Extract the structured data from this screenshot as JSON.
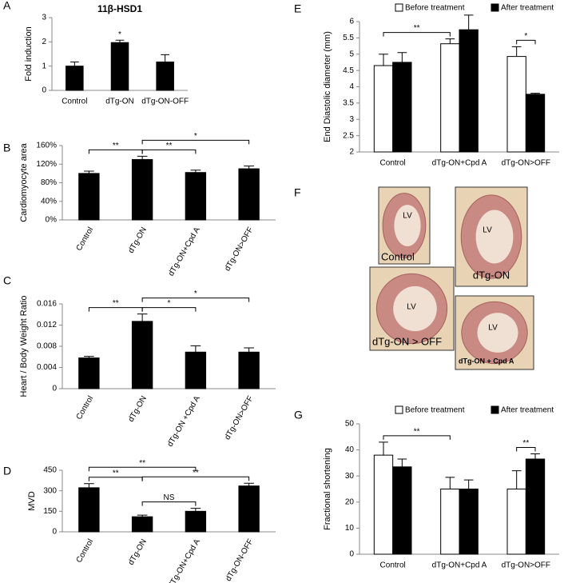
{
  "chart_data": [
    {
      "type": "bar",
      "panel": "A",
      "title": "11β-HSD1",
      "ylabel": "Fold induction",
      "categories": [
        "Control",
        "dTg-ON",
        "dTg-ON-OFF"
      ],
      "values": [
        1.0,
        1.97,
        1.17
      ],
      "errors": [
        0.17,
        0.1,
        0.3
      ],
      "color": "#000000",
      "ylim": [
        0,
        3
      ],
      "yticks": [
        0,
        1,
        2,
        3
      ],
      "annotations": [
        {
          "text": "*",
          "from": 1,
          "to": 1
        }
      ]
    },
    {
      "type": "bar",
      "panel": "B",
      "ylabel": "Cardiomyocyte area",
      "categories": [
        "Control",
        "dTg-ON",
        "dTg-ON+Cpd A",
        "dTg-ON>OFF"
      ],
      "values": [
        100,
        130,
        102,
        110
      ],
      "errors": [
        5,
        7,
        5,
        6
      ],
      "color": "#000000",
      "ylim": [
        0,
        160
      ],
      "yticks": [
        {
          "value": 0,
          "label": "0%"
        },
        {
          "value": 40,
          "label": "40%"
        },
        {
          "value": 80,
          "label": "80%"
        },
        {
          "value": 120,
          "label": "120%"
        },
        {
          "value": 160,
          "label": "160%"
        }
      ],
      "rotate_labels": true,
      "annotations": [
        {
          "text": "**",
          "from": 0,
          "to": 1
        },
        {
          "text": "**",
          "from": 1,
          "to": 2
        },
        {
          "text": "*",
          "from": 1,
          "to": 3
        }
      ]
    },
    {
      "type": "bar",
      "panel": "C",
      "ylabel": "Heart / Body Weight Ratio",
      "categories": [
        "Control",
        "dTg-ON",
        "dTg-ON +Cpd A",
        "dTg-ON>OFF"
      ],
      "values": [
        0.0058,
        0.0127,
        0.0069,
        0.0069
      ],
      "errors": [
        0.0003,
        0.0014,
        0.0012,
        0.0008
      ],
      "color": "#000000",
      "ylim": [
        0,
        0.016
      ],
      "yticks": [
        0,
        0.004,
        0.008,
        0.012,
        0.016
      ],
      "rotate_labels": true,
      "annotations": [
        {
          "text": "**",
          "from": 0,
          "to": 1
        },
        {
          "text": "*",
          "from": 1,
          "to": 2
        },
        {
          "text": "*",
          "from": 1,
          "to": 3
        }
      ]
    },
    {
      "type": "bar",
      "panel": "D",
      "ylabel": "MVD",
      "categories": [
        "Control",
        "dTg-ON",
        "dTg-ON+Cpd A",
        "dTg-ON-OFF"
      ],
      "values": [
        322,
        110,
        150,
        335
      ],
      "errors": [
        30,
        12,
        22,
        20
      ],
      "color": "#000000",
      "ylim": [
        0,
        450
      ],
      "yticks": [
        0,
        150,
        300,
        450
      ],
      "rotate_labels": true,
      "annotations": [
        {
          "text": "NS",
          "from": 1,
          "to": 2
        },
        {
          "text": "**",
          "from": 0,
          "to": 1
        },
        {
          "text": "**",
          "from": 1,
          "to": 3
        },
        {
          "text": "**",
          "from": 0,
          "to": 2
        }
      ]
    },
    {
      "type": "grouped-bar",
      "panel": "E",
      "ylabel": "End Diastolic diameter (mm)",
      "categories": [
        "Control",
        "dTg-ON+Cpd A",
        "dTg-ON>OFF"
      ],
      "series": [
        {
          "name": "Before treatment",
          "color": "#ffffff",
          "values": [
            4.65,
            5.32,
            4.93
          ],
          "errors": [
            0.35,
            0.15,
            0.3
          ]
        },
        {
          "name": "After treatment",
          "color": "#000000",
          "values": [
            4.75,
            5.75,
            3.77
          ],
          "errors": [
            0.3,
            0.45,
            0.03
          ]
        }
      ],
      "ylim": [
        2,
        6
      ],
      "yticks": [
        2,
        2.5,
        3,
        3.5,
        4,
        4.5,
        5,
        5.5,
        6
      ],
      "annotations": [
        {
          "text": "**",
          "from": [
            0,
            0
          ],
          "to": [
            1,
            0
          ]
        },
        {
          "text": "*",
          "from": [
            2,
            0
          ],
          "to": [
            2,
            1
          ]
        }
      ]
    },
    {
      "type": "image",
      "panel": "F",
      "images": [
        {
          "label": "LV",
          "caption": "Control"
        },
        {
          "label": "LV",
          "caption": "dTg-ON"
        },
        {
          "label": "LV",
          "caption": "dTg-ON > OFF"
        },
        {
          "label": "LV",
          "caption": "dTg-ON + Cpd A"
        }
      ]
    },
    {
      "type": "grouped-bar",
      "panel": "G",
      "ylabel": "Fractional shortening",
      "categories": [
        "Control",
        "dTg-ON+Cpd A",
        "dTg-ON>OFF"
      ],
      "series": [
        {
          "name": "Before treatment",
          "color": "#ffffff",
          "values": [
            38,
            25,
            25
          ],
          "errors": [
            5,
            4.5,
            7
          ]
        },
        {
          "name": "After treatment",
          "color": "#000000",
          "values": [
            33.5,
            25,
            36.5
          ],
          "errors": [
            3,
            3.5,
            2
          ]
        }
      ],
      "ylim": [
        0,
        50
      ],
      "yticks": [
        0,
        10,
        20,
        30,
        40,
        50
      ],
      "annotations": [
        {
          "text": "**",
          "from": [
            0,
            0
          ],
          "to": [
            1,
            0
          ]
        },
        {
          "text": "**",
          "from": [
            2,
            0
          ],
          "to": [
            2,
            1
          ]
        }
      ]
    }
  ]
}
